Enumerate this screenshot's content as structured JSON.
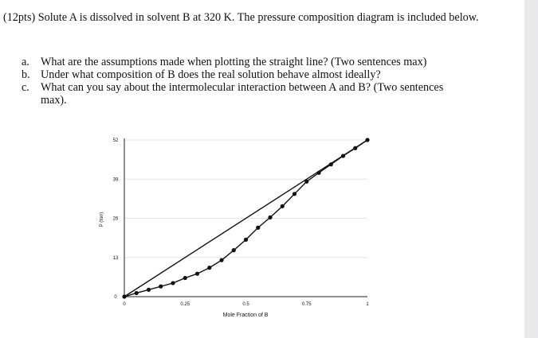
{
  "question": {
    "intro": "(12pts) Solute A is dissolved in solvent B at 320 K. The pressure composition diagram is included below.",
    "parts": [
      {
        "letter": "a.",
        "text": "What are the assumptions made when plotting the straight line? (Two sentences max)"
      },
      {
        "letter": "b.",
        "text": "Under what composition of B does the real solution behave almost ideally?"
      },
      {
        "letter": "c.",
        "text": "What can you say about the intermolecular interaction between A and B? (Two sentences max)."
      }
    ]
  },
  "chart_data": {
    "type": "line",
    "title": "",
    "xlabel": "Mole Fraction of B",
    "ylabel": "P (torr)",
    "xlim": [
      0,
      1
    ],
    "ylim": [
      0,
      52
    ],
    "x_ticks": [
      "0",
      "0.25",
      "0.5",
      "0.75",
      "1"
    ],
    "y_ticks": [
      "0",
      "13",
      "26",
      "39",
      "52"
    ],
    "grid": true,
    "legend": "none",
    "series": [
      {
        "style": "line",
        "x": [
          0,
          1
        ],
        "y": [
          0,
          52
        ]
      },
      {
        "style": "line-with-markers",
        "x": [
          0,
          0.05,
          0.1,
          0.15,
          0.2,
          0.25,
          0.3,
          0.35,
          0.4,
          0.45,
          0.5,
          0.55,
          0.6,
          0.65,
          0.7,
          0.75,
          0.8,
          0.85,
          0.9,
          0.95,
          1.0
        ],
        "y": [
          0,
          1.2,
          2.3,
          3.4,
          4.5,
          6.2,
          7.6,
          9.6,
          12.1,
          15.4,
          18.9,
          22.9,
          26.3,
          30.0,
          34.1,
          38.2,
          41.1,
          43.9,
          46.7,
          49.3,
          52.0
        ]
      }
    ]
  }
}
